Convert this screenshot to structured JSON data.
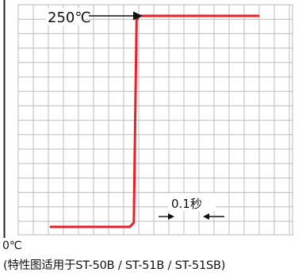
{
  "chart_data": {
    "type": "line",
    "title": "",
    "xlabel": "",
    "ylabel": "",
    "x": [
      0.0,
      1.14,
      1.2,
      1.22,
      1.24,
      1.28,
      3.0
    ],
    "y": [
      0,
      0,
      5,
      125,
      245,
      250,
      250
    ],
    "xlim": [
      0,
      3.0
    ],
    "ylim": [
      0,
      250
    ],
    "grid": true,
    "series_color": "#e8202a",
    "annotations": {
      "top_label": "250℃",
      "bottom_label": "0℃",
      "interval_label": "0.1秒"
    }
  },
  "caption": "(特性图适用于ST-50B / ST-51B / ST-51SB)"
}
